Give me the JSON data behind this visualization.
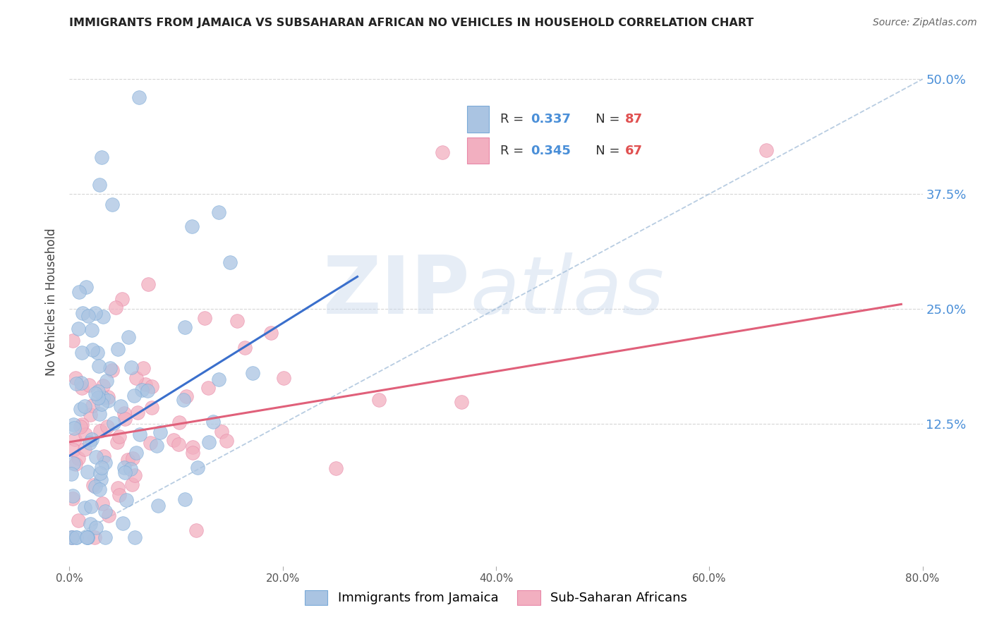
{
  "title": "IMMIGRANTS FROM JAMAICA VS SUBSAHARAN AFRICAN NO VEHICLES IN HOUSEHOLD CORRELATION CHART",
  "source": "Source: ZipAtlas.com",
  "ylabel": "No Vehicles in Household",
  "ytick_labels": [
    "12.5%",
    "25.0%",
    "37.5%",
    "50.0%"
  ],
  "ytick_values": [
    0.125,
    0.25,
    0.375,
    0.5
  ],
  "xlim": [
    0.0,
    0.8
  ],
  "ylim": [
    -0.03,
    0.545
  ],
  "color_jamaica": "#aac4e2",
  "color_subsaharan": "#f2afc0",
  "color_jamaica_line": "#3a6fcc",
  "color_subsaharan_line": "#e0607a",
  "color_jamaica_edge": "#7aaad8",
  "color_subsaharan_edge": "#e888a8",
  "color_diagonal": "#a0bcd8",
  "watermark_zip": "ZIP",
  "watermark_atlas": "atlas",
  "label_jamaica": "Immigrants from Jamaica",
  "label_subsaharan": "Sub-Saharan Africans",
  "legend_r1": "0.337",
  "legend_n1": "87",
  "legend_r2": "0.345",
  "legend_n2": "67",
  "xtick_labels": [
    "0.0%",
    "20.0%",
    "40.0%",
    "60.0%",
    "80.0%"
  ],
  "xtick_values": [
    0.0,
    0.2,
    0.4,
    0.6,
    0.8
  ]
}
